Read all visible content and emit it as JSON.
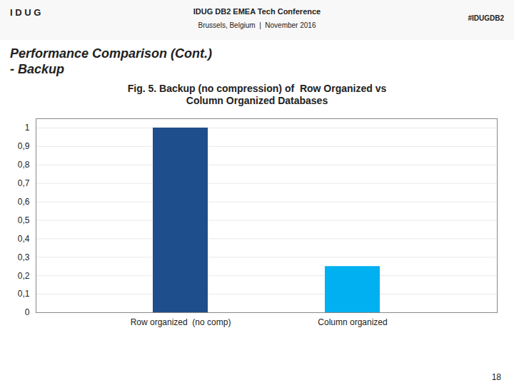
{
  "chart_data": {
    "type": "bar",
    "title": "Fig. 5. Backup (no compression) of  Row Organized vs\nColumn Organized Databases",
    "annotations": [
      "I D U G",
      "IDUG DB2 EMEA Tech Conference",
      "Brussels, Belgium  |  November 2016",
      "#IDUGDB2",
      "Performance Comparison (Cont.)",
      "- Backup",
      "18"
    ],
    "categories": [
      "Row organized  (no comp)",
      "Column organized"
    ],
    "values": [
      1.0,
      0.25
    ],
    "colors": [
      "#1F4E8C",
      "#00B0F0"
    ],
    "ylim": [
      0,
      1.05
    ],
    "yticks": [
      0,
      {
        "value": 0.1,
        "label": "0,1"
      },
      {
        "value": 0.2,
        "label": "0,2"
      },
      {
        "value": 0.3,
        "label": "0,3"
      },
      {
        "value": 0.4,
        "label": "0,4"
      },
      {
        "value": 0.5,
        "label": "0,5"
      },
      {
        "value": 0.6,
        "label": "0,6"
      },
      {
        "value": 0.7,
        "label": "0,7"
      },
      {
        "value": 0.8,
        "label": "0,8"
      },
      {
        "value": 0.9,
        "label": "0,9"
      },
      1
    ],
    "grid": true
  }
}
